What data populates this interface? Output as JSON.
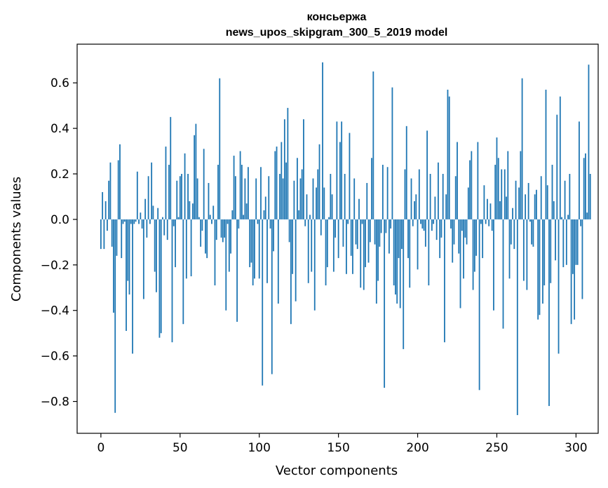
{
  "chart_data": {
    "type": "bar",
    "title": "консьержа",
    "subtitle": "news_upos_skipgram_300_5_2019 model",
    "xlabel": "Vector components",
    "ylabel": "Components values",
    "xlim": [
      -15,
      314
    ],
    "ylim": [
      -0.94,
      0.77
    ],
    "xticks": [
      0,
      50,
      100,
      150,
      200,
      250,
      300
    ],
    "xtick_labels": [
      "0",
      "50",
      "100",
      "150",
      "200",
      "250",
      "300"
    ],
    "yticks": [
      -0.8,
      -0.6,
      -0.4,
      -0.2,
      0.0,
      0.2,
      0.4,
      0.6
    ],
    "ytick_labels": [
      "−0.8",
      "−0.6",
      "−0.4",
      "−0.2",
      "0.0",
      "0.2",
      "0.4",
      "0.6"
    ],
    "grid": false,
    "color": "#1f77b4",
    "x_start": 0,
    "values": [
      -0.13,
      0.12,
      -0.13,
      0.08,
      -0.05,
      0.17,
      0.25,
      -0.12,
      -0.41,
      -0.85,
      -0.16,
      0.26,
      0.33,
      -0.17,
      -0.02,
      -0.01,
      -0.49,
      -0.27,
      -0.33,
      -0.02,
      -0.59,
      -0.02,
      -0.01,
      0.21,
      -0.02,
      0.03,
      -0.04,
      -0.35,
      0.09,
      -0.08,
      0.19,
      -0.02,
      0.25,
      0.06,
      -0.23,
      -0.32,
      0.05,
      -0.52,
      -0.5,
      0.01,
      -0.07,
      0.32,
      -0.09,
      0.24,
      0.45,
      -0.54,
      -0.03,
      -0.21,
      0.17,
      0.01,
      0.19,
      0.2,
      -0.46,
      0.29,
      -0.26,
      0.2,
      0.08,
      -0.25,
      0.07,
      0.37,
      0.42,
      0.18,
      0.01,
      -0.12,
      -0.05,
      0.31,
      -0.15,
      -0.17,
      0.16,
      0.02,
      -0.02,
      0.06,
      -0.29,
      -0.09,
      0.24,
      0.62,
      -0.08,
      -0.1,
      -0.08,
      -0.4,
      -0.02,
      -0.23,
      -0.15,
      0.04,
      0.28,
      0.19,
      -0.45,
      -0.04,
      0.3,
      0.24,
      0.02,
      0.18,
      0.07,
      0.23,
      -0.21,
      -0.19,
      -0.29,
      -0.26,
      0.18,
      -0.02,
      -0.26,
      0.23,
      -0.73,
      0.04,
      0.1,
      -0.28,
      0.19,
      -0.04,
      -0.68,
      -0.14,
      0.3,
      0.32,
      -0.37,
      0.2,
      0.34,
      0.18,
      0.44,
      0.25,
      0.49,
      -0.1,
      -0.46,
      -0.24,
      0.17,
      -0.36,
      0.27,
      0.04,
      0.18,
      0.22,
      0.44,
      -0.03,
      0.11,
      -0.28,
      0.02,
      -0.23,
      0.18,
      -0.4,
      0.14,
      0.22,
      0.33,
      -0.07,
      0.69,
      0.14,
      -0.29,
      -0.21,
      0.01,
      0.2,
      0.11,
      -0.23,
      -0.08,
      0.43,
      -0.17,
      0.34,
      0.43,
      -0.12,
      0.2,
      -0.24,
      -0.02,
      0.38,
      -0.16,
      -0.24,
      0.18,
      -0.11,
      -0.13,
      0.09,
      -0.3,
      -0.02,
      -0.31,
      -0.21,
      0.16,
      -0.19,
      -0.1,
      0.27,
      0.65,
      -0.11,
      -0.37,
      -0.27,
      -0.12,
      -0.06,
      0.24,
      -0.74,
      -0.06,
      0.23,
      -0.15,
      -0.04,
      0.58,
      -0.29,
      -0.33,
      -0.37,
      -0.17,
      -0.39,
      -0.13,
      -0.57,
      0.22,
      0.41,
      -0.17,
      -0.3,
      0.18,
      -0.03,
      0.08,
      0.11,
      -0.22,
      0.22,
      -0.02,
      -0.04,
      -0.05,
      -0.12,
      0.39,
      -0.29,
      0.2,
      -0.05,
      -0.02,
      0.1,
      -0.09,
      0.25,
      -0.17,
      -0.08,
      0.2,
      -0.54,
      0.11,
      0.57,
      0.54,
      -0.04,
      -0.19,
      -0.11,
      0.19,
      0.34,
      -0.15,
      -0.39,
      -0.05,
      -0.26,
      -0.08,
      -0.11,
      0.14,
      0.26,
      0.3,
      -0.31,
      -0.23,
      -0.16,
      0.34,
      -0.75,
      -0.02,
      -0.17,
      0.15,
      -0.02,
      0.09,
      -0.03,
      0.07,
      -0.05,
      -0.4,
      0.24,
      0.36,
      0.27,
      0.08,
      0.22,
      -0.48,
      0.22,
      0.1,
      0.3,
      -0.26,
      -0.11,
      0.05,
      -0.13,
      0.17,
      -0.86,
      0.14,
      0.3,
      0.62,
      -0.27,
      0.11,
      -0.31,
      0.16,
      -0.01,
      -0.11,
      -0.12,
      0.11,
      0.13,
      -0.44,
      -0.42,
      0.19,
      -0.37,
      -0.29,
      0.57,
      0.15,
      -0.82,
      -0.28,
      0.24,
      0.08,
      -0.18,
      0.46,
      -0.59,
      0.54,
      0.01,
      -0.21,
      0.17,
      -0.2,
      0.02,
      0.2,
      -0.46,
      -0.24,
      -0.44,
      -0.2,
      -0.2,
      0.43,
      -0.03,
      -0.35,
      0.27,
      0.29,
      0.03,
      0.68,
      0.2
    ]
  }
}
